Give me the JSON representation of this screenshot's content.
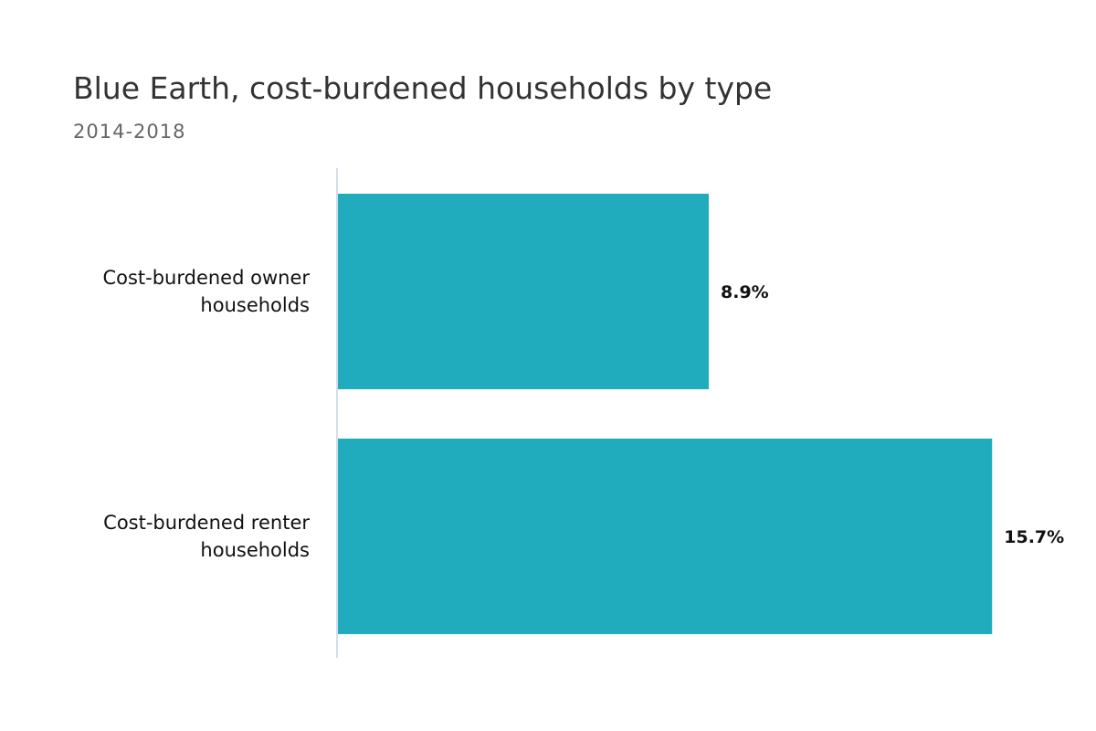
{
  "chart_data": {
    "type": "bar",
    "orientation": "horizontal",
    "title": "Blue Earth, cost-burdened households by type",
    "subtitle": "2014-2018",
    "categories": [
      [
        "Cost-burdened owner",
        "households"
      ],
      [
        "Cost-burdened renter",
        "households"
      ]
    ],
    "values": [
      8.9,
      15.7
    ],
    "data_labels": [
      "8.9%",
      "15.7%"
    ],
    "unit": "%",
    "xlim": [
      0,
      16.9
    ],
    "grid": false,
    "legend": "none",
    "colors": {
      "bar": "#20acbd",
      "axis": "#c8d3e3"
    }
  }
}
